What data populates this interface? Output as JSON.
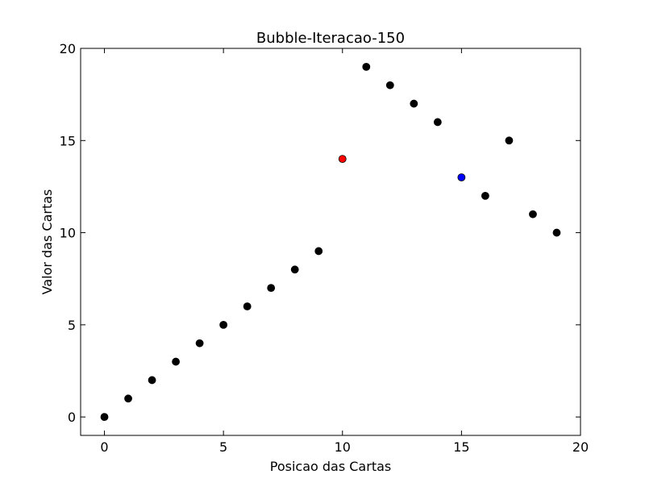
{
  "chart_data": {
    "type": "scatter",
    "title": "Bubble-Iteracao-150",
    "xlabel": "Posicao das Cartas",
    "ylabel": "Valor das Cartas",
    "xlim": [
      -1,
      20
    ],
    "ylim": [
      -1,
      20
    ],
    "xticks": [
      0,
      5,
      10,
      15,
      20
    ],
    "yticks": [
      0,
      5,
      10,
      15,
      20
    ],
    "grid": false,
    "legend": "none",
    "series": [
      {
        "color": "#000000",
        "points": [
          {
            "x": 0,
            "y": 0
          },
          {
            "x": 1,
            "y": 1
          },
          {
            "x": 2,
            "y": 2
          },
          {
            "x": 3,
            "y": 3
          },
          {
            "x": 4,
            "y": 4
          },
          {
            "x": 5,
            "y": 5
          },
          {
            "x": 6,
            "y": 6
          },
          {
            "x": 7,
            "y": 7
          },
          {
            "x": 8,
            "y": 8
          },
          {
            "x": 9,
            "y": 9
          },
          {
            "x": 11,
            "y": 19
          },
          {
            "x": 12,
            "y": 18
          },
          {
            "x": 13,
            "y": 17
          },
          {
            "x": 14,
            "y": 16
          },
          {
            "x": 16,
            "y": 12
          },
          {
            "x": 17,
            "y": 15
          },
          {
            "x": 18,
            "y": 11
          },
          {
            "x": 19,
            "y": 10
          }
        ]
      },
      {
        "color": "#ff0000",
        "points": [
          {
            "x": 10,
            "y": 14
          }
        ]
      },
      {
        "color": "#0000ff",
        "points": [
          {
            "x": 15,
            "y": 13
          }
        ]
      }
    ]
  }
}
